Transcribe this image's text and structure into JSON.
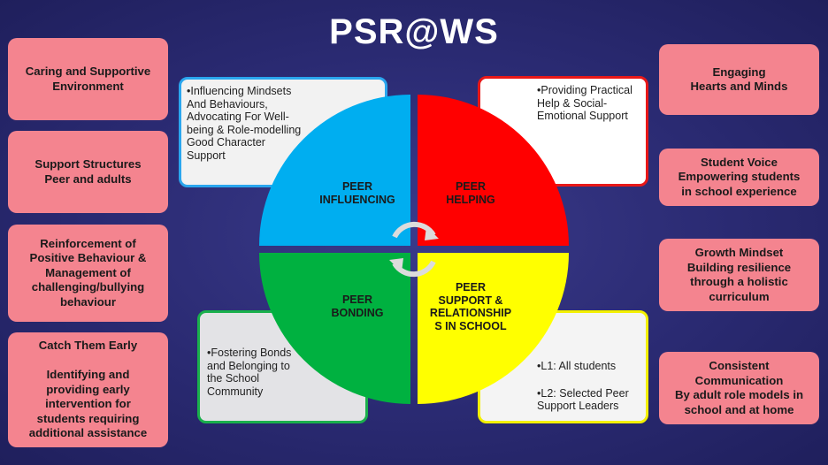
{
  "title": "PSR@WS",
  "left_boxes": [
    "Caring and Supportive\nEnvironment",
    "Support Structures\nPeer and adults",
    "Reinforcement of\nPositive Behaviour &\nManagement of\nchallenging/bullying\nbehaviour",
    "Catch Them Early\n\nIdentifying and\nproviding early\nintervention for\nstudents requiring\nadditional assistance"
  ],
  "right_boxes": [
    "Engaging\nHearts and Minds",
    "Student Voice\nEmpowering students\nin school experience",
    "Growth Mindset\nBuilding resilience\nthrough a holistic\ncurriculum",
    "Consistent\nCommunication\nBy adult role models in\nschool and at home"
  ],
  "quadrants": {
    "influencing": {
      "label": "PEER\nINFLUENCING",
      "description": "•Influencing Mindsets\n  And Behaviours,\n  Advocating For Well-\n  being & Role-modelling\n  Good Character\n  Support",
      "color": "#00aef0"
    },
    "helping": {
      "label": "PEER\nHELPING",
      "description": "•Providing Practical\n  Help & Social-\n  Emotional Support",
      "color": "#ff0000"
    },
    "bonding": {
      "label": "PEER\nBONDING",
      "description": "•Fostering Bonds\n  and Belonging to\n  the School\n  Community",
      "color": "#00b140"
    },
    "support": {
      "label": "PEER\nSUPPORT &\nRELATIONSHIP\nS IN SCHOOL",
      "description_lines": [
        "•L1: All students",
        "•L2: Selected Peer\n  Support Leaders"
      ],
      "color": "#ffff00"
    }
  },
  "center_icon": "cycle-arrows-icon"
}
